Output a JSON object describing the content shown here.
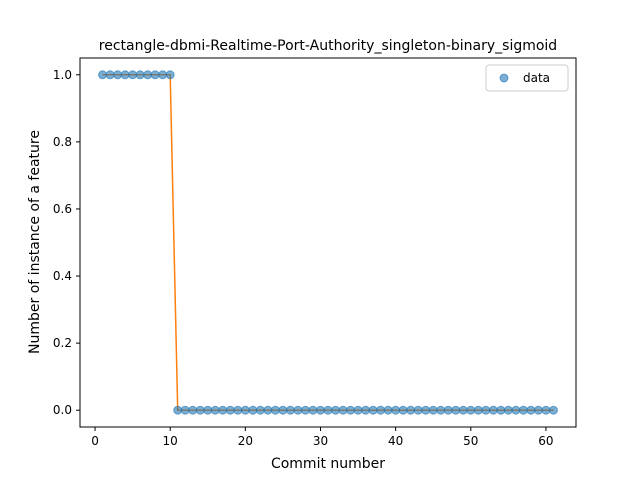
{
  "chart_data": {
    "type": "scatter",
    "title": "rectangle-dbmi-Realtime-Port-Authority_singleton-binary_sigmoid",
    "xlabel": "Commit number",
    "ylabel": "Number of instance of a feature",
    "xlim": [
      -2,
      64
    ],
    "ylim": [
      -0.05,
      1.05
    ],
    "xticks": [
      0,
      10,
      20,
      30,
      40,
      50,
      60
    ],
    "yticks": [
      0.0,
      0.2,
      0.4,
      0.6,
      0.8,
      1.0
    ],
    "xtick_labels": [
      "0",
      "10",
      "20",
      "30",
      "40",
      "50",
      "60"
    ],
    "ytick_labels": [
      "0.0",
      "0.2",
      "0.4",
      "0.6",
      "0.8",
      "1.0"
    ],
    "legend_position": "top-right",
    "grid": false,
    "series": [
      {
        "name": "data",
        "style": "scatter",
        "color": "#1f77b4",
        "x": [
          1,
          2,
          3,
          4,
          5,
          6,
          7,
          8,
          9,
          10,
          11,
          12,
          13,
          14,
          15,
          16,
          17,
          18,
          19,
          20,
          21,
          22,
          23,
          24,
          25,
          26,
          27,
          28,
          29,
          30,
          31,
          32,
          33,
          34,
          35,
          36,
          37,
          38,
          39,
          40,
          41,
          42,
          43,
          44,
          45,
          46,
          47,
          48,
          49,
          50,
          51,
          52,
          53,
          54,
          55,
          56,
          57,
          58,
          59,
          60,
          61
        ],
        "y": [
          1,
          1,
          1,
          1,
          1,
          1,
          1,
          1,
          1,
          1,
          0,
          0,
          0,
          0,
          0,
          0,
          0,
          0,
          0,
          0,
          0,
          0,
          0,
          0,
          0,
          0,
          0,
          0,
          0,
          0,
          0,
          0,
          0,
          0,
          0,
          0,
          0,
          0,
          0,
          0,
          0,
          0,
          0,
          0,
          0,
          0,
          0,
          0,
          0,
          0,
          0,
          0,
          0,
          0,
          0,
          0,
          0,
          0,
          0,
          0,
          0
        ]
      },
      {
        "style": "line",
        "color": "#ff7f0e",
        "x": [
          1,
          2,
          3,
          4,
          5,
          6,
          7,
          8,
          9,
          10,
          11,
          12,
          13,
          14,
          15,
          16,
          17,
          18,
          19,
          20,
          21,
          22,
          23,
          24,
          25,
          26,
          27,
          28,
          29,
          30,
          31,
          32,
          33,
          34,
          35,
          36,
          37,
          38,
          39,
          40,
          41,
          42,
          43,
          44,
          45,
          46,
          47,
          48,
          49,
          50,
          51,
          52,
          53,
          54,
          55,
          56,
          57,
          58,
          59,
          60,
          61
        ],
        "y": [
          1,
          1,
          1,
          1,
          1,
          1,
          1,
          1,
          1,
          1,
          0,
          0,
          0,
          0,
          0,
          0,
          0,
          0,
          0,
          0,
          0,
          0,
          0,
          0,
          0,
          0,
          0,
          0,
          0,
          0,
          0,
          0,
          0,
          0,
          0,
          0,
          0,
          0,
          0,
          0,
          0,
          0,
          0,
          0,
          0,
          0,
          0,
          0,
          0,
          0,
          0,
          0,
          0,
          0,
          0,
          0,
          0,
          0,
          0,
          0,
          0
        ]
      }
    ]
  }
}
